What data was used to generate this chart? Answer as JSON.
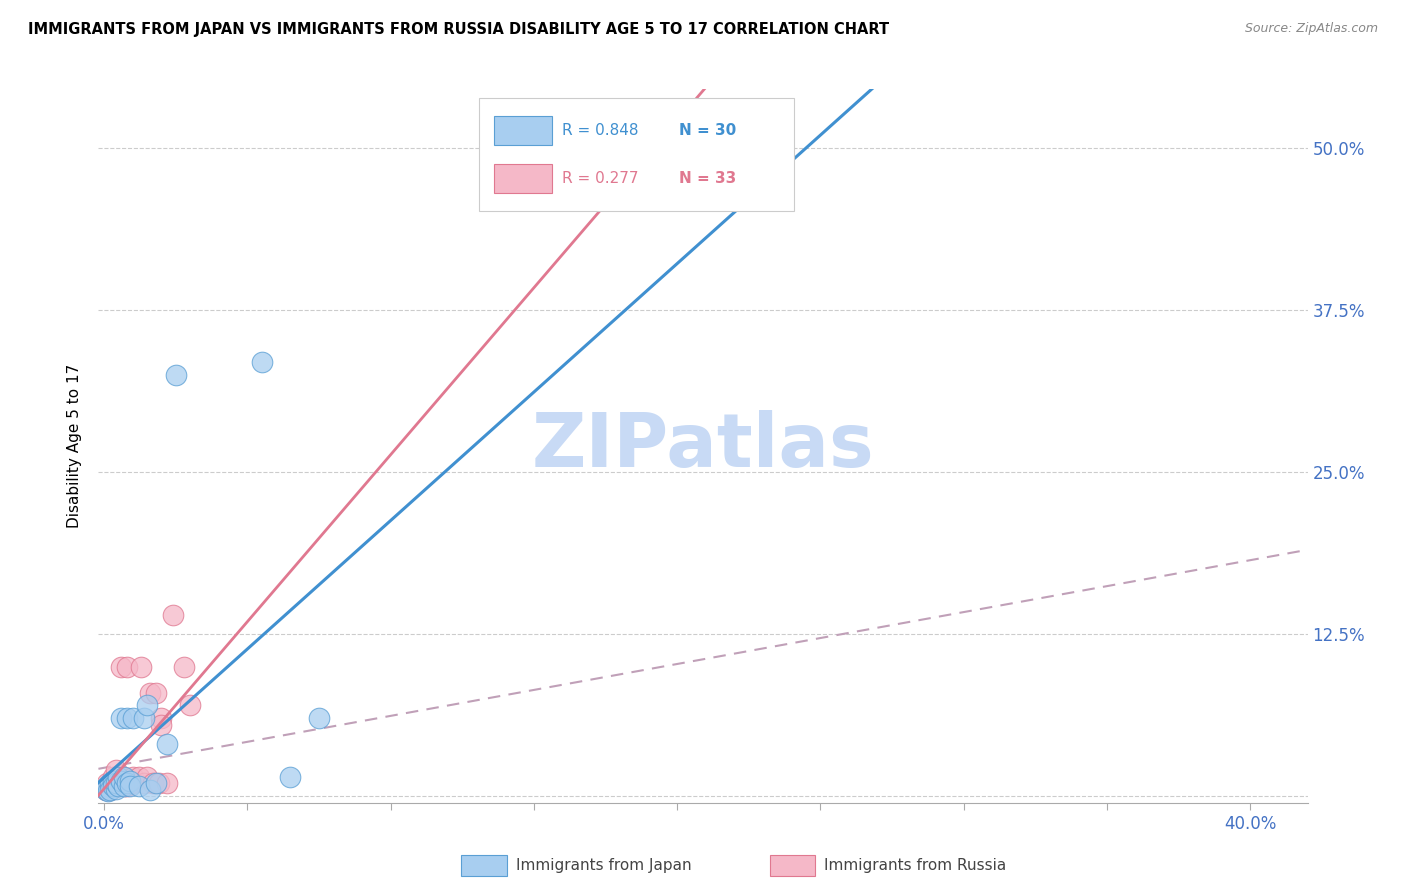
{
  "title": "IMMIGRANTS FROM JAPAN VS IMMIGRANTS FROM RUSSIA DISABILITY AGE 5 TO 17 CORRELATION CHART",
  "source": "Source: ZipAtlas.com",
  "xlim": [
    -0.002,
    0.42
  ],
  "ylim": [
    -0.005,
    0.545
  ],
  "x_tick_positions": [
    0.0,
    0.05,
    0.1,
    0.15,
    0.2,
    0.25,
    0.3,
    0.35,
    0.4
  ],
  "x_tick_labels_show": [
    "0.0%",
    "",
    "",
    "",
    "",
    "",
    "",
    "",
    "40.0%"
  ],
  "y_tick_positions": [
    0.0,
    0.125,
    0.25,
    0.375,
    0.5
  ],
  "y_tick_labels_right": [
    "",
    "12.5%",
    "25.0%",
    "37.5%",
    "50.0%"
  ],
  "japan_R": 0.848,
  "japan_N": 30,
  "russia_R": 0.277,
  "russia_N": 33,
  "japan_color": "#a8cef0",
  "russia_color": "#f5b8c8",
  "japan_edge_color": "#5a9fd4",
  "russia_edge_color": "#e07890",
  "japan_line_color": "#4090d0",
  "russia_line_color": "#e07890",
  "russia_dash_color": "#c0a0b8",
  "watermark": "ZIPatlas",
  "watermark_color": "#c8daf5",
  "legend_label_color": "#4090d0",
  "legend_russia_color": "#e07890",
  "japan_x": [
    0.0005,
    0.001,
    0.0015,
    0.002,
    0.002,
    0.003,
    0.003,
    0.004,
    0.004,
    0.005,
    0.005,
    0.006,
    0.006,
    0.007,
    0.007,
    0.008,
    0.008,
    0.009,
    0.009,
    0.01,
    0.012,
    0.014,
    0.015,
    0.016,
    0.018,
    0.022,
    0.025,
    0.055,
    0.065,
    0.075
  ],
  "japan_y": [
    0.005,
    0.008,
    0.004,
    0.01,
    0.005,
    0.012,
    0.008,
    0.006,
    0.01,
    0.015,
    0.008,
    0.06,
    0.012,
    0.008,
    0.015,
    0.06,
    0.01,
    0.012,
    0.008,
    0.06,
    0.008,
    0.06,
    0.07,
    0.005,
    0.01,
    0.04,
    0.325,
    0.335,
    0.015,
    0.06
  ],
  "russia_x": [
    0.0005,
    0.001,
    0.001,
    0.002,
    0.002,
    0.003,
    0.003,
    0.004,
    0.004,
    0.005,
    0.005,
    0.006,
    0.007,
    0.007,
    0.008,
    0.008,
    0.009,
    0.01,
    0.01,
    0.012,
    0.013,
    0.014,
    0.015,
    0.016,
    0.017,
    0.018,
    0.019,
    0.02,
    0.022,
    0.024,
    0.028,
    0.03,
    0.02
  ],
  "russia_y": [
    0.005,
    0.01,
    0.005,
    0.01,
    0.005,
    0.015,
    0.008,
    0.02,
    0.01,
    0.015,
    0.008,
    0.1,
    0.015,
    0.008,
    0.1,
    0.008,
    0.01,
    0.015,
    0.01,
    0.015,
    0.1,
    0.01,
    0.015,
    0.08,
    0.01,
    0.08,
    0.01,
    0.06,
    0.01,
    0.14,
    0.1,
    0.07,
    0.055
  ],
  "japan_reg_slope": 1.42,
  "japan_reg_intercept": -0.008,
  "russia_reg_slope": 0.28,
  "russia_reg_intercept": 0.022,
  "russia_dash_slope": 0.3,
  "russia_dash_intercept": 0.022
}
